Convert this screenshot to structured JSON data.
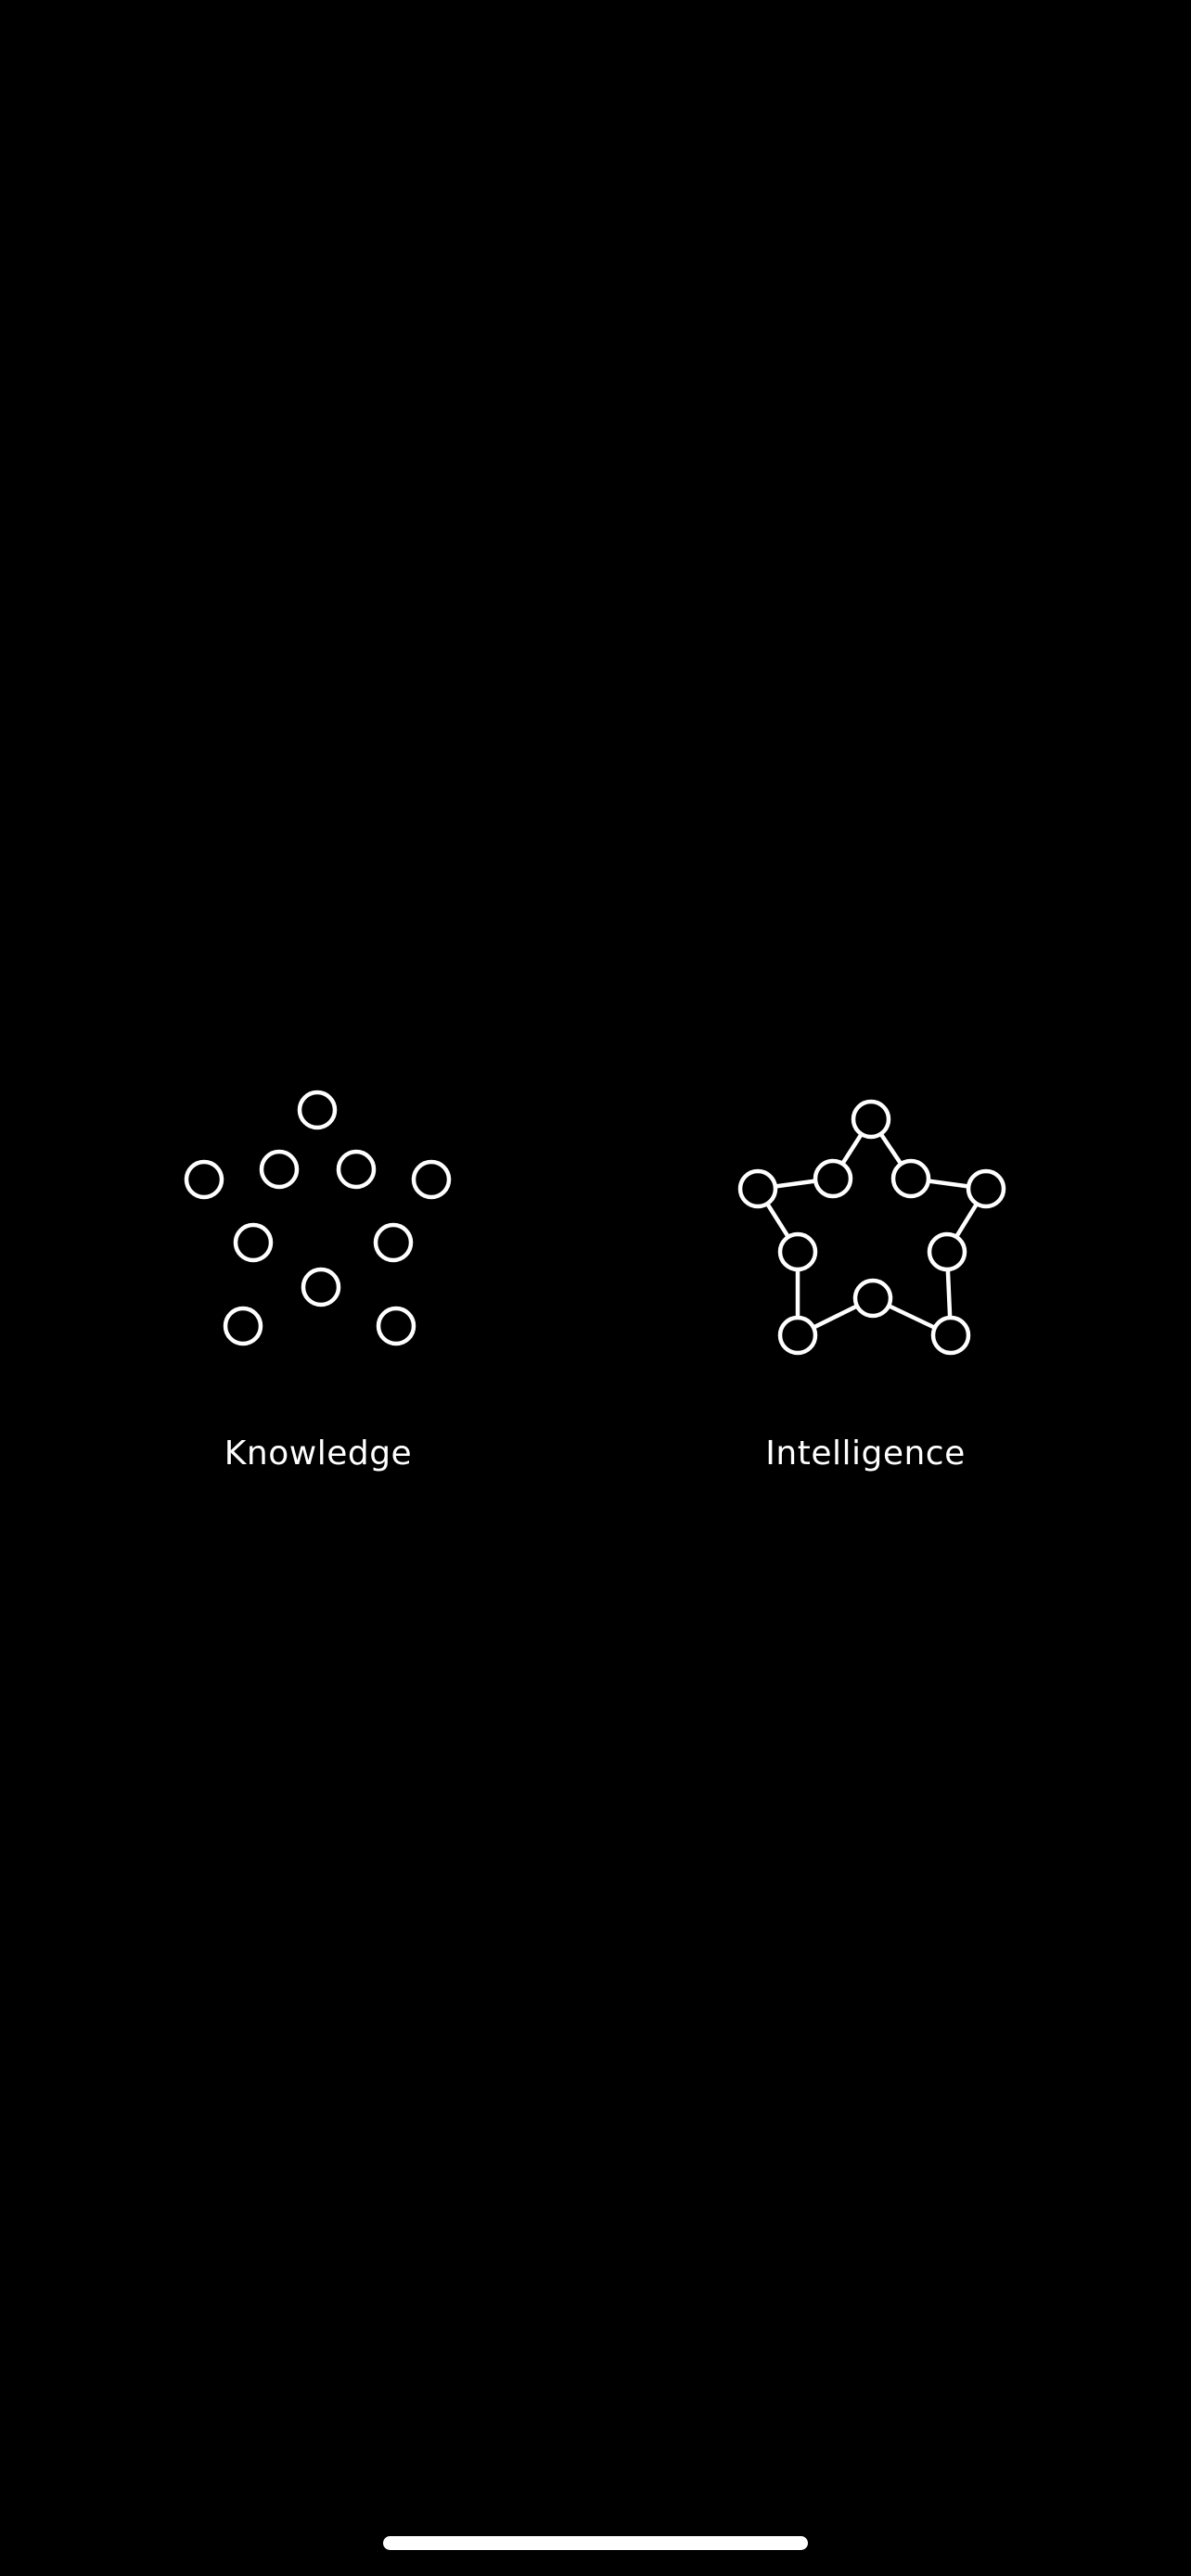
{
  "concepts": {
    "knowledge": {
      "label": "Knowledge",
      "icon": "scattered-nodes-icon"
    },
    "intelligence": {
      "label": "Intelligence",
      "icon": "connected-star-nodes-icon"
    }
  },
  "colors": {
    "background": "#000000",
    "foreground": "#ffffff"
  }
}
